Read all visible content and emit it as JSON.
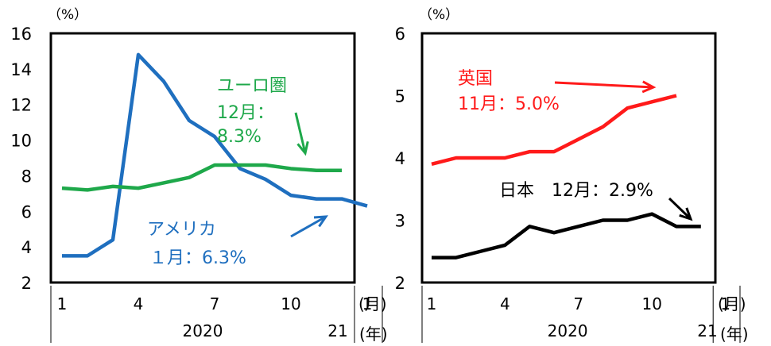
{
  "chart_data": [
    {
      "type": "line",
      "y_unit": "（%）",
      "ylim": [
        2,
        16
      ],
      "yticks": [
        2,
        4,
        6,
        8,
        10,
        12,
        14,
        16
      ],
      "x_tick_labels": [
        "1",
        "4",
        "7",
        "10",
        "1"
      ],
      "x_tick_months": [
        1,
        4,
        7,
        10,
        13
      ],
      "year_labels": [
        "2020",
        "21"
      ],
      "x_unit_month": "(月)",
      "x_unit_year": "(年)",
      "grid": false,
      "series": [
        {
          "name": "アメリカ",
          "color": "#1f6fbf",
          "x": [
            1,
            2,
            3,
            4,
            5,
            6,
            7,
            8,
            9,
            10,
            11,
            12,
            13
          ],
          "values": [
            3.5,
            3.5,
            4.4,
            14.8,
            13.3,
            11.1,
            10.2,
            8.4,
            7.8,
            6.9,
            6.7,
            6.7,
            6.3
          ],
          "label_lines": [
            "アメリカ",
            "１月：6.3%"
          ]
        },
        {
          "name": "ユーロ圏",
          "color": "#1ea84a",
          "x": [
            1,
            2,
            3,
            4,
            5,
            6,
            7,
            8,
            9,
            10,
            11,
            12
          ],
          "values": [
            7.3,
            7.2,
            7.4,
            7.3,
            7.6,
            7.9,
            8.6,
            8.6,
            8.6,
            8.4,
            8.3,
            8.3
          ],
          "label_lines": [
            "ユーロ圏",
            "12月：",
            "8.3%"
          ]
        }
      ]
    },
    {
      "type": "line",
      "y_unit": "（%）",
      "ylim": [
        2,
        6
      ],
      "yticks": [
        2,
        3,
        4,
        5,
        6
      ],
      "x_tick_labels": [
        "1",
        "4",
        "7",
        "10",
        "1"
      ],
      "x_tick_months": [
        1,
        4,
        7,
        10,
        13
      ],
      "year_labels": [
        "2020",
        "21"
      ],
      "x_unit_month": "(月)",
      "x_unit_year": "(年)",
      "grid": false,
      "series": [
        {
          "name": "英国",
          "color": "#ff1a1a",
          "x": [
            1,
            2,
            3,
            4,
            5,
            6,
            7,
            8,
            9,
            10,
            11
          ],
          "values": [
            3.9,
            4.0,
            4.0,
            4.0,
            4.1,
            4.1,
            4.3,
            4.5,
            4.8,
            4.9,
            5.0
          ],
          "label_lines": [
            "英国",
            "11月：5.0%"
          ]
        },
        {
          "name": "日本",
          "color": "#000000",
          "x": [
            1,
            2,
            3,
            4,
            5,
            6,
            7,
            8,
            9,
            10,
            11,
            12
          ],
          "values": [
            2.4,
            2.4,
            2.5,
            2.6,
            2.9,
            2.8,
            2.9,
            3.0,
            3.0,
            3.1,
            2.9,
            2.9
          ],
          "label_lines": [
            "日本　12月：2.9%"
          ]
        }
      ]
    }
  ]
}
